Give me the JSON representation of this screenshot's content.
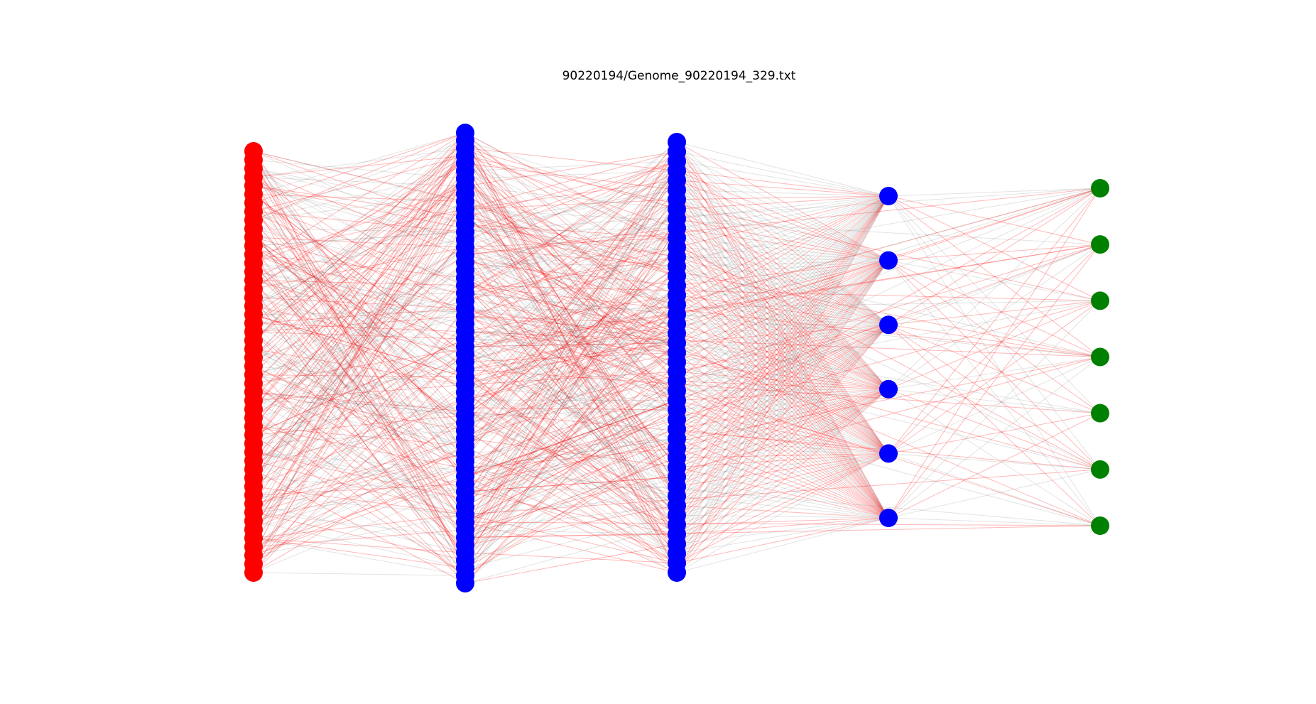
{
  "title": "90220194/Genome_90220194_329.txt",
  "network": {
    "layers": [
      {
        "id": "input",
        "node_count": 50,
        "color": "#ff0000"
      },
      {
        "id": "hidden-1",
        "node_count": 60,
        "color": "#0000ff"
      },
      {
        "id": "hidden-2",
        "node_count": 46,
        "color": "#0000ff"
      },
      {
        "id": "hidden-3",
        "node_count": 6,
        "color": "#0000ff"
      },
      {
        "id": "output",
        "node_count": 7,
        "color": "#008000"
      }
    ],
    "edge_colors": {
      "positive": "#ff0000",
      "negative": "#808080"
    }
  }
}
